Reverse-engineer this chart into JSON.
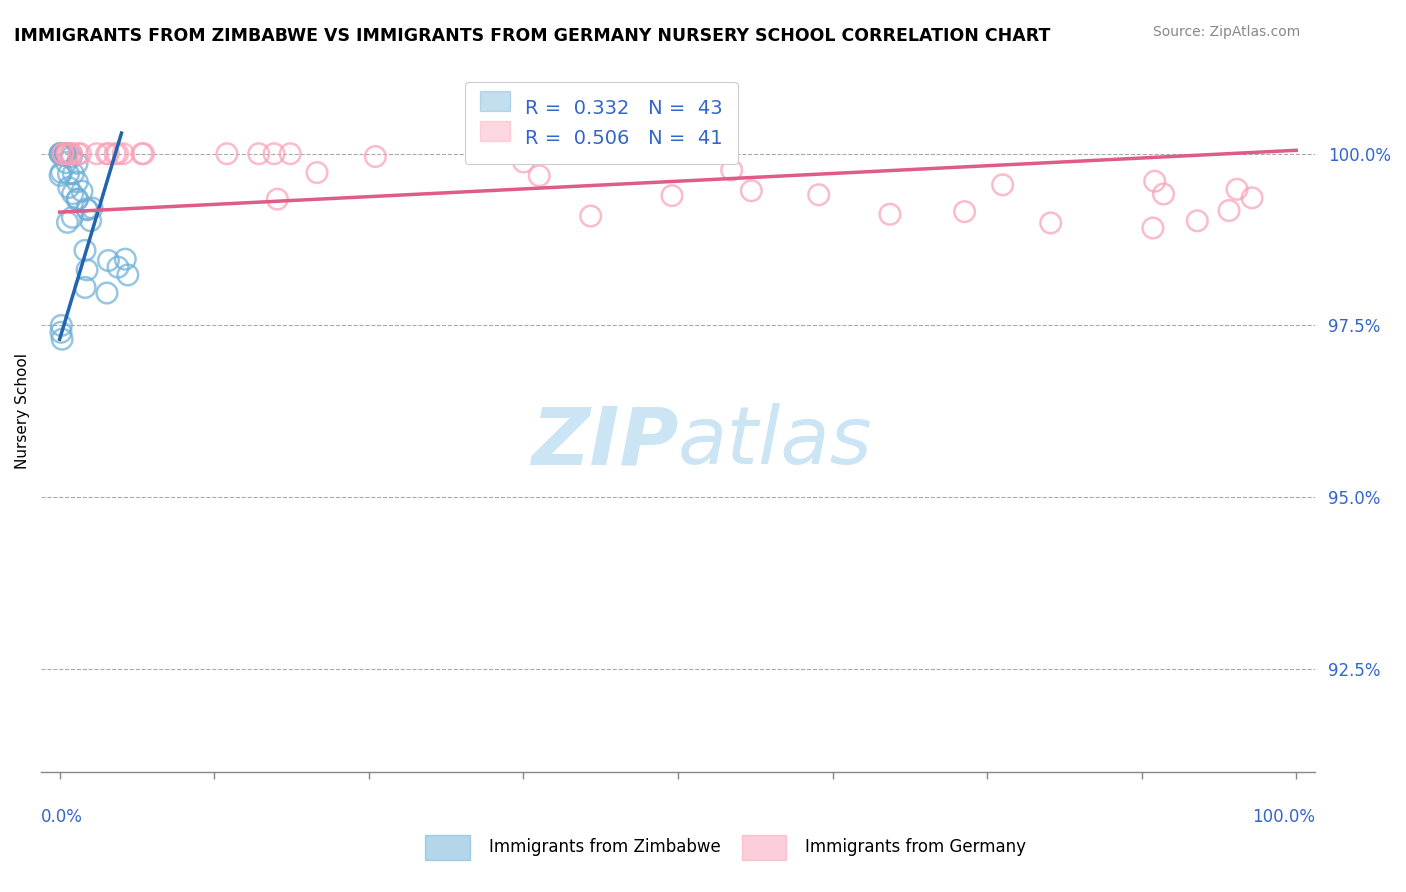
{
  "title": "IMMIGRANTS FROM ZIMBABWE VS IMMIGRANTS FROM GERMANY NURSERY SCHOOL CORRELATION CHART",
  "source": "Source: ZipAtlas.com",
  "ylabel": "Nursery School",
  "y_ticks": [
    92.5,
    95.0,
    97.5,
    100.0
  ],
  "y_tick_labels": [
    "92.5%",
    "95.0%",
    "97.5%",
    "100.0%"
  ],
  "xlim": [
    0.0,
    100.0
  ],
  "ylim": [
    91.0,
    101.5
  ],
  "color_zimbabwe": "#6baed6",
  "color_germany": "#fa9fb5",
  "color_line_zimbabwe": "#2166ac",
  "color_line_germany": "#e05a8a",
  "watermark_color": "#cce5f5",
  "zim_n": 43,
  "ger_n": 41,
  "legend_text_1": "R =  0.332   N =  43",
  "legend_text_2": "R =  0.506   N =  41",
  "zim_line_x0": 0.0,
  "zim_line_y0": 97.3,
  "zim_line_x1": 5.0,
  "zim_line_y1": 100.3,
  "ger_line_x0": 0.0,
  "ger_line_y0": 99.15,
  "ger_line_x1": 100.0,
  "ger_line_y1": 100.05
}
